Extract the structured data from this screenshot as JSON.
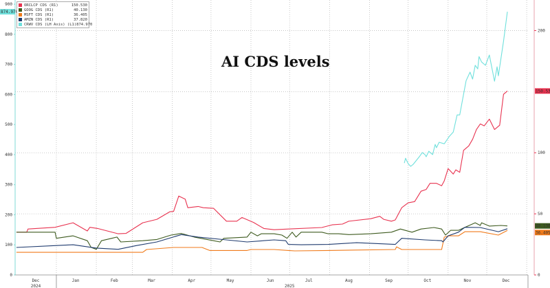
{
  "chart_data": {
    "type": "line",
    "title": "AI CDS levels",
    "grid": true,
    "legend_placement": "top-left",
    "x_range": [
      "2024-11-30",
      "2026-01-02"
    ],
    "x_tick_labels": [
      {
        "label": "Dec",
        "date": "2024-12-16"
      },
      {
        "label": "Jan",
        "date": "2025-01-16"
      },
      {
        "label": "Feb",
        "date": "2025-02-15"
      },
      {
        "label": "Mar",
        "date": "2025-03-16"
      },
      {
        "label": "Apr",
        "date": "2025-04-16"
      },
      {
        "label": "May",
        "date": "2025-05-16"
      },
      {
        "label": "Jun",
        "date": "2025-06-16"
      },
      {
        "label": "Jul",
        "date": "2025-07-16"
      },
      {
        "label": "Aug",
        "date": "2025-08-16"
      },
      {
        "label": "Sep",
        "date": "2025-09-16"
      },
      {
        "label": "Oct",
        "date": "2025-10-16"
      },
      {
        "label": "Nov",
        "date": "2025-11-16"
      },
      {
        "label": "Dec",
        "date": "2025-12-16"
      }
    ],
    "year_labels": [
      {
        "label": "2024",
        "date": "2024-12-16"
      },
      {
        "label": "2025",
        "date": "2025-07-01"
      }
    ],
    "left_axis": {
      "range": [
        0,
        914
      ],
      "ticks": [
        0,
        100,
        200,
        300,
        400,
        500,
        600,
        700,
        800,
        900
      ]
    },
    "right_axis": {
      "range": [
        0,
        225
      ],
      "ticks": [
        0,
        50,
        100,
        200
      ],
      "grid_values": [
        50,
        100,
        150,
        200
      ]
    },
    "series": [
      {
        "name": "ORCLCP CDS (R1)",
        "axis": "right",
        "color": "#e8324f",
        "last_value": "150.530",
        "points": [
          [
            "2024-12-01",
            35
          ],
          [
            "2024-12-09",
            35
          ],
          [
            "2024-12-10",
            37.6
          ],
          [
            "2024-12-31",
            39
          ],
          [
            "2025-01-14",
            42.7
          ],
          [
            "2025-01-25",
            36
          ],
          [
            "2025-01-27",
            39
          ],
          [
            "2025-02-02",
            38
          ],
          [
            "2025-02-18",
            33.7
          ],
          [
            "2025-02-24",
            34
          ],
          [
            "2025-03-09",
            42.7
          ],
          [
            "2025-03-20",
            45.5
          ],
          [
            "2025-03-30",
            51.7
          ],
          [
            "2025-04-02",
            52
          ],
          [
            "2025-04-06",
            64.6
          ],
          [
            "2025-04-11",
            62
          ],
          [
            "2025-04-13",
            55
          ],
          [
            "2025-04-21",
            56
          ],
          [
            "2025-04-25",
            55
          ],
          [
            "2025-05-03",
            54.5
          ],
          [
            "2025-05-13",
            44
          ],
          [
            "2025-05-21",
            44
          ],
          [
            "2025-05-25",
            47
          ],
          [
            "2025-06-03",
            43
          ],
          [
            "2025-06-11",
            38
          ],
          [
            "2025-06-19",
            37
          ],
          [
            "2025-06-30",
            37.6
          ],
          [
            "2025-07-26",
            38.8
          ],
          [
            "2025-08-03",
            41
          ],
          [
            "2025-08-11",
            41.6
          ],
          [
            "2025-08-16",
            44
          ],
          [
            "2025-09-02",
            46
          ],
          [
            "2025-09-09",
            48
          ],
          [
            "2025-09-12",
            45.5
          ],
          [
            "2025-09-18",
            44
          ],
          [
            "2025-09-21",
            45
          ],
          [
            "2025-09-26",
            55
          ],
          [
            "2025-10-01",
            59
          ],
          [
            "2025-10-06",
            60
          ],
          [
            "2025-10-11",
            68.5
          ],
          [
            "2025-10-15",
            70
          ],
          [
            "2025-10-18",
            75
          ],
          [
            "2025-10-23",
            75
          ],
          [
            "2025-10-27",
            73
          ],
          [
            "2025-10-29",
            77
          ],
          [
            "2025-11-01",
            87
          ],
          [
            "2025-11-05",
            82.6
          ],
          [
            "2025-11-07",
            86
          ],
          [
            "2025-11-10",
            84
          ],
          [
            "2025-11-13",
            102
          ],
          [
            "2025-11-17",
            105.6
          ],
          [
            "2025-11-20",
            111
          ],
          [
            "2025-11-23",
            119
          ],
          [
            "2025-11-26",
            123.6
          ],
          [
            "2025-11-29",
            122
          ],
          [
            "2025-12-03",
            127.5
          ],
          [
            "2025-12-07",
            119
          ],
          [
            "2025-12-11",
            122.5
          ],
          [
            "2025-12-14",
            147.8
          ],
          [
            "2025-12-17",
            150.53
          ]
        ]
      },
      {
        "name": "GOOG CDS (R1)",
        "axis": "right",
        "color": "#3d5a1e",
        "last_value": "40.130",
        "points": [
          [
            "2024-12-01",
            35
          ],
          [
            "2024-12-31",
            35
          ],
          [
            "2025-01-01",
            30
          ],
          [
            "2025-01-14",
            32
          ],
          [
            "2025-01-25",
            28
          ],
          [
            "2025-01-28",
            22.5
          ],
          [
            "2025-02-01",
            21
          ],
          [
            "2025-02-05",
            28
          ],
          [
            "2025-02-13",
            30
          ],
          [
            "2025-02-17",
            31
          ],
          [
            "2025-02-20",
            27
          ],
          [
            "2025-03-09",
            28
          ],
          [
            "2025-03-20",
            29
          ],
          [
            "2025-03-31",
            32.6
          ],
          [
            "2025-04-08",
            34
          ],
          [
            "2025-04-18",
            31
          ],
          [
            "2025-05-03",
            28
          ],
          [
            "2025-05-08",
            27
          ],
          [
            "2025-05-11",
            30
          ],
          [
            "2025-05-29",
            31
          ],
          [
            "2025-06-01",
            35
          ],
          [
            "2025-06-06",
            32
          ],
          [
            "2025-06-09",
            33.7
          ],
          [
            "2025-06-19",
            33.7
          ],
          [
            "2025-06-25",
            32.6
          ],
          [
            "2025-06-29",
            30
          ],
          [
            "2025-07-03",
            35
          ],
          [
            "2025-07-06",
            31
          ],
          [
            "2025-07-10",
            35
          ],
          [
            "2025-07-26",
            35
          ],
          [
            "2025-07-31",
            33.7
          ],
          [
            "2025-08-08",
            33.7
          ],
          [
            "2025-08-16",
            33
          ],
          [
            "2025-09-02",
            33.7
          ],
          [
            "2025-09-18",
            35
          ],
          [
            "2025-09-25",
            37.6
          ],
          [
            "2025-10-04",
            35
          ],
          [
            "2025-10-11",
            37.6
          ],
          [
            "2025-10-21",
            38.8
          ],
          [
            "2025-10-27",
            37.6
          ],
          [
            "2025-10-30",
            32.6
          ],
          [
            "2025-11-03",
            36.5
          ],
          [
            "2025-11-09",
            36.5
          ],
          [
            "2025-11-14",
            39
          ],
          [
            "2025-11-22",
            42.7
          ],
          [
            "2025-11-26",
            40.5
          ],
          [
            "2025-11-27",
            42.7
          ],
          [
            "2025-12-03",
            40
          ],
          [
            "2025-12-12",
            40.5
          ],
          [
            "2025-12-17",
            40.13
          ]
        ]
      },
      {
        "name": "MSFT CDS (R1)",
        "axis": "right",
        "color": "#f07a1a",
        "last_value": "36.405",
        "points": [
          [
            "2024-12-01",
            18.5
          ],
          [
            "2025-03-09",
            18.5
          ],
          [
            "2025-03-12",
            20.8
          ],
          [
            "2025-04-02",
            22.5
          ],
          [
            "2025-04-24",
            22.5
          ],
          [
            "2025-04-30",
            20
          ],
          [
            "2025-05-29",
            20
          ],
          [
            "2025-06-01",
            20.8
          ],
          [
            "2025-06-19",
            20.8
          ],
          [
            "2025-06-30",
            20
          ],
          [
            "2025-07-05",
            19.7
          ],
          [
            "2025-07-31",
            20
          ],
          [
            "2025-09-21",
            20.8
          ],
          [
            "2025-09-22",
            23
          ],
          [
            "2025-09-26",
            20.8
          ],
          [
            "2025-10-27",
            20.8
          ],
          [
            "2025-10-29",
            31
          ],
          [
            "2025-11-02",
            32
          ],
          [
            "2025-11-09",
            32
          ],
          [
            "2025-11-14",
            35.4
          ],
          [
            "2025-11-26",
            35.4
          ],
          [
            "2025-12-10",
            32.6
          ],
          [
            "2025-12-17",
            36.405
          ]
        ]
      },
      {
        "name": "AMZN CDS (R1)",
        "axis": "right",
        "color": "#1e3a6e",
        "last_value": "37.820",
        "points": [
          [
            "2024-12-01",
            22.5
          ],
          [
            "2024-12-31",
            24
          ],
          [
            "2025-01-14",
            24.7
          ],
          [
            "2025-02-01",
            22
          ],
          [
            "2025-02-18",
            21
          ],
          [
            "2025-03-04",
            24
          ],
          [
            "2025-03-20",
            27
          ],
          [
            "2025-04-08",
            33
          ],
          [
            "2025-04-21",
            31
          ],
          [
            "2025-05-13",
            28.7
          ],
          [
            "2025-05-29",
            27
          ],
          [
            "2025-06-19",
            28.7
          ],
          [
            "2025-06-28",
            28
          ],
          [
            "2025-06-30",
            25
          ],
          [
            "2025-07-10",
            24.7
          ],
          [
            "2025-07-31",
            25
          ],
          [
            "2025-08-22",
            26.4
          ],
          [
            "2025-09-21",
            25
          ],
          [
            "2025-09-26",
            30
          ],
          [
            "2025-10-14",
            28.7
          ],
          [
            "2025-10-27",
            28
          ],
          [
            "2025-10-28",
            27
          ],
          [
            "2025-11-01",
            32
          ],
          [
            "2025-11-09",
            35
          ],
          [
            "2025-11-14",
            39
          ],
          [
            "2025-11-26",
            38.8
          ],
          [
            "2025-12-10",
            35.4
          ],
          [
            "2025-12-17",
            37.82
          ]
        ]
      },
      {
        "name": "CRWV CDS (LH Axis) (L1)",
        "axis": "left",
        "color": "#6fe0dc",
        "last_value": "874.970",
        "points": [
          [
            "2025-09-28",
            372
          ],
          [
            "2025-09-29",
            388
          ],
          [
            "2025-10-01",
            370
          ],
          [
            "2025-10-03",
            361
          ],
          [
            "2025-10-05",
            368
          ],
          [
            "2025-10-10",
            395
          ],
          [
            "2025-10-12",
            407
          ],
          [
            "2025-10-14",
            400
          ],
          [
            "2025-10-15",
            393
          ],
          [
            "2025-10-17",
            411
          ],
          [
            "2025-10-20",
            400
          ],
          [
            "2025-10-22",
            434
          ],
          [
            "2025-10-23",
            423
          ],
          [
            "2025-10-25",
            441
          ],
          [
            "2025-10-29",
            436
          ],
          [
            "2025-11-02",
            461
          ],
          [
            "2025-11-05",
            475
          ],
          [
            "2025-11-08",
            532
          ],
          [
            "2025-11-10",
            532
          ],
          [
            "2025-11-13",
            601
          ],
          [
            "2025-11-15",
            646
          ],
          [
            "2025-11-18",
            674
          ],
          [
            "2025-11-20",
            651
          ],
          [
            "2025-11-22",
            697
          ],
          [
            "2025-11-24",
            685
          ],
          [
            "2025-11-25",
            726
          ],
          [
            "2025-11-27",
            708
          ],
          [
            "2025-11-30",
            697
          ],
          [
            "2025-12-03",
            731
          ],
          [
            "2025-12-07",
            644
          ],
          [
            "2025-12-09",
            692
          ],
          [
            "2025-12-10",
            662
          ],
          [
            "2025-12-14",
            777
          ],
          [
            "2025-12-17",
            874.97
          ]
        ]
      }
    ]
  }
}
